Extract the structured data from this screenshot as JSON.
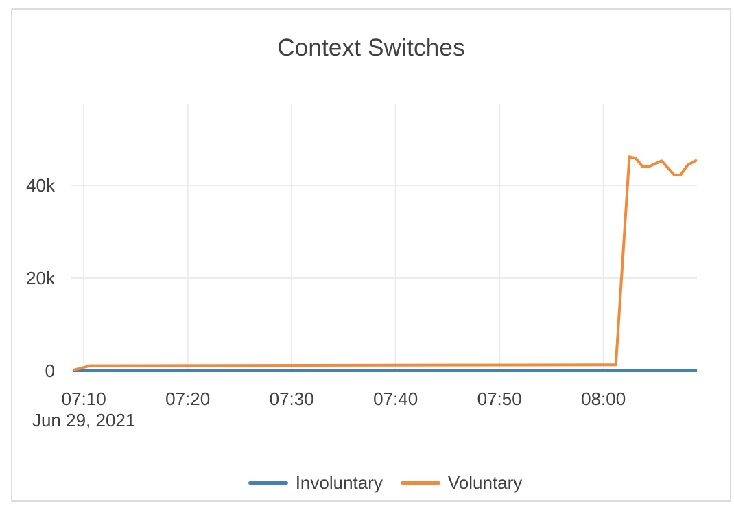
{
  "chart_data": {
    "type": "line",
    "title": "Context Switches",
    "x_axis": {
      "date_label": "Jun 29, 2021",
      "tick_labels": [
        "07:10",
        "07:20",
        "07:30",
        "07:40",
        "07:50",
        "08:00"
      ],
      "tick_minutes": [
        10,
        20,
        30,
        40,
        50,
        60
      ],
      "range_minutes": [
        9,
        69
      ]
    },
    "y_axis": {
      "tick_labels": [
        "0",
        "20k",
        "40k"
      ],
      "tick_values": [
        0,
        20000,
        40000
      ],
      "range": [
        0,
        57500
      ]
    },
    "grid": true,
    "legend_position": "bottom",
    "series": [
      {
        "name": "Involuntary",
        "color": "#4282b2",
        "points": [
          [
            9,
            0
          ],
          [
            69,
            0
          ]
        ]
      },
      {
        "name": "Voluntary",
        "color": "#ef8b3b",
        "points": [
          [
            9,
            150
          ],
          [
            10.6,
            1100
          ],
          [
            35,
            1200
          ],
          [
            61.2,
            1300
          ],
          [
            62.5,
            46200
          ],
          [
            63.1,
            45900
          ],
          [
            63.8,
            44000
          ],
          [
            64.4,
            44100
          ],
          [
            65.6,
            45300
          ],
          [
            66.8,
            42300
          ],
          [
            67.4,
            42200
          ],
          [
            68.1,
            44400
          ],
          [
            69,
            45500
          ]
        ]
      }
    ]
  },
  "colors": {
    "border": "#dcdcdc",
    "grid": "#ebebeb",
    "text": "#404040",
    "background": "#ffffff"
  }
}
